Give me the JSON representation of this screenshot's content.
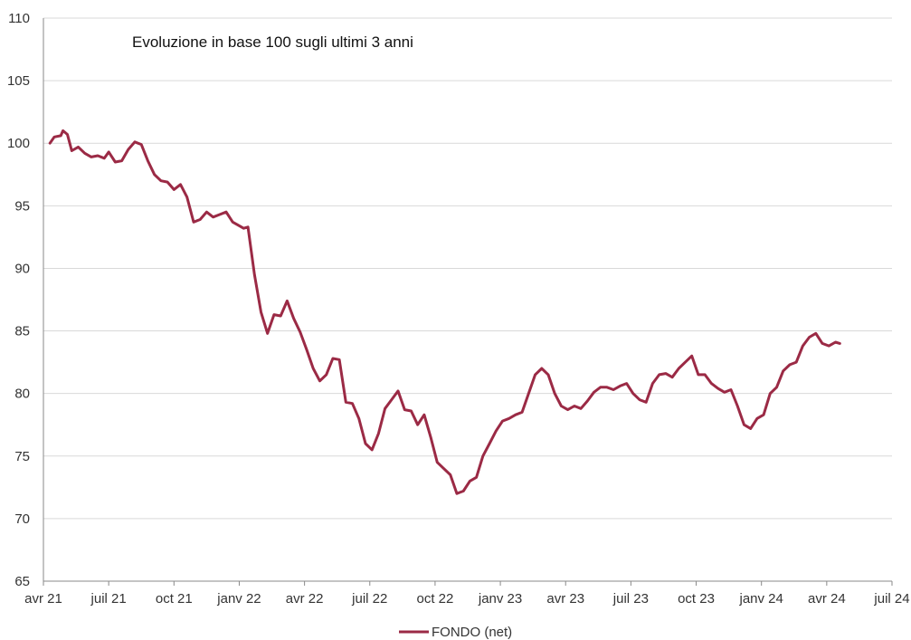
{
  "chart_data": {
    "type": "line",
    "title": "Evoluzione in base 100 sugli ultimi 3 anni",
    "xlabel": "",
    "ylabel": "",
    "ylim": [
      65,
      110
    ],
    "yticks": [
      65,
      70,
      75,
      80,
      85,
      90,
      95,
      100,
      105,
      110
    ],
    "xticks": [
      "avr 21",
      "juil 21",
      "oct 21",
      "janv 22",
      "avr 22",
      "juil 22",
      "oct 22",
      "janv 23",
      "avr 23",
      "juil 23",
      "oct 23",
      "janv 24",
      "avr 24",
      "juil 24"
    ],
    "grid": "horizontal",
    "legend_position": "bottom",
    "line_color": "#9b2a45",
    "series": [
      {
        "name": "FONDO (net)",
        "x": [
          0.3,
          0.5,
          0.8,
          0.9,
          1.1,
          1.3,
          1.6,
          1.9,
          2.2,
          2.5,
          2.8,
          3.0,
          3.3,
          3.6,
          3.9,
          4.2,
          4.5,
          4.8,
          5.1,
          5.4,
          5.7,
          6.0,
          6.3,
          6.6,
          6.9,
          7.2,
          7.5,
          7.8,
          8.1,
          8.4,
          8.7,
          9.0,
          9.2,
          9.4,
          9.7,
          10.0,
          10.3,
          10.6,
          10.9,
          11.2,
          11.5,
          11.8,
          12.1,
          12.4,
          12.7,
          13.0,
          13.3,
          13.6,
          13.9,
          14.2,
          14.5,
          14.8,
          15.1,
          15.4,
          15.7,
          16.0,
          16.3,
          16.6,
          16.9,
          17.2,
          17.5,
          17.8,
          18.1,
          18.4,
          18.7,
          19.0,
          19.3,
          19.6,
          19.9,
          20.2,
          20.5,
          20.8,
          21.1,
          21.4,
          21.7,
          22.0,
          22.3,
          22.6,
          22.9,
          23.2,
          23.5,
          23.8,
          24.1,
          24.4,
          24.7,
          25.0,
          25.3,
          25.6,
          25.9,
          26.2,
          26.5,
          26.8,
          27.1,
          27.4,
          27.7,
          28.0,
          28.3,
          28.6,
          28.9,
          29.2,
          29.5,
          29.8,
          30.1,
          30.4,
          30.7,
          31.0,
          31.3,
          31.6,
          31.9,
          32.2,
          32.5,
          32.8,
          33.1,
          33.4,
          33.7,
          34.0,
          34.3,
          34.6,
          34.9,
          35.2,
          35.5,
          35.8,
          36.1,
          36.4,
          36.6
        ],
        "values": [
          100.0,
          100.5,
          100.6,
          101.0,
          100.7,
          99.4,
          99.7,
          99.2,
          98.9,
          99.0,
          98.8,
          99.3,
          98.5,
          98.6,
          99.5,
          100.1,
          99.9,
          98.6,
          97.5,
          97.0,
          96.9,
          96.3,
          96.7,
          95.7,
          93.7,
          93.9,
          94.5,
          94.1,
          94.3,
          94.5,
          93.7,
          93.4,
          93.2,
          93.3,
          89.5,
          86.5,
          84.8,
          86.3,
          86.2,
          87.4,
          86.0,
          84.9,
          83.5,
          82.0,
          81.0,
          81.5,
          82.8,
          82.7,
          79.3,
          79.2,
          78.0,
          76.0,
          75.5,
          76.8,
          78.8,
          79.5,
          80.2,
          78.7,
          78.6,
          77.5,
          78.3,
          76.5,
          74.5,
          74.0,
          73.5,
          72.0,
          72.2,
          73.0,
          73.3,
          75.0,
          76.0,
          77.0,
          77.8,
          78.0,
          78.3,
          78.5,
          80.0,
          81.5,
          82.0,
          81.5,
          80.0,
          79.0,
          78.7,
          79.0,
          78.8,
          79.4,
          80.1,
          80.5,
          80.5,
          80.3,
          80.6,
          80.8,
          80.0,
          79.5,
          79.3,
          80.8,
          81.5,
          81.6,
          81.3,
          82.0,
          82.5,
          83.0,
          81.5,
          81.5,
          80.8,
          80.4,
          80.1,
          80.3,
          79.0,
          77.5,
          77.2,
          78.0,
          78.3,
          80.0,
          80.5,
          81.8,
          82.3,
          82.5,
          83.8,
          84.5,
          84.8,
          84.0,
          83.8,
          84.1,
          84.0
        ]
      }
    ]
  }
}
